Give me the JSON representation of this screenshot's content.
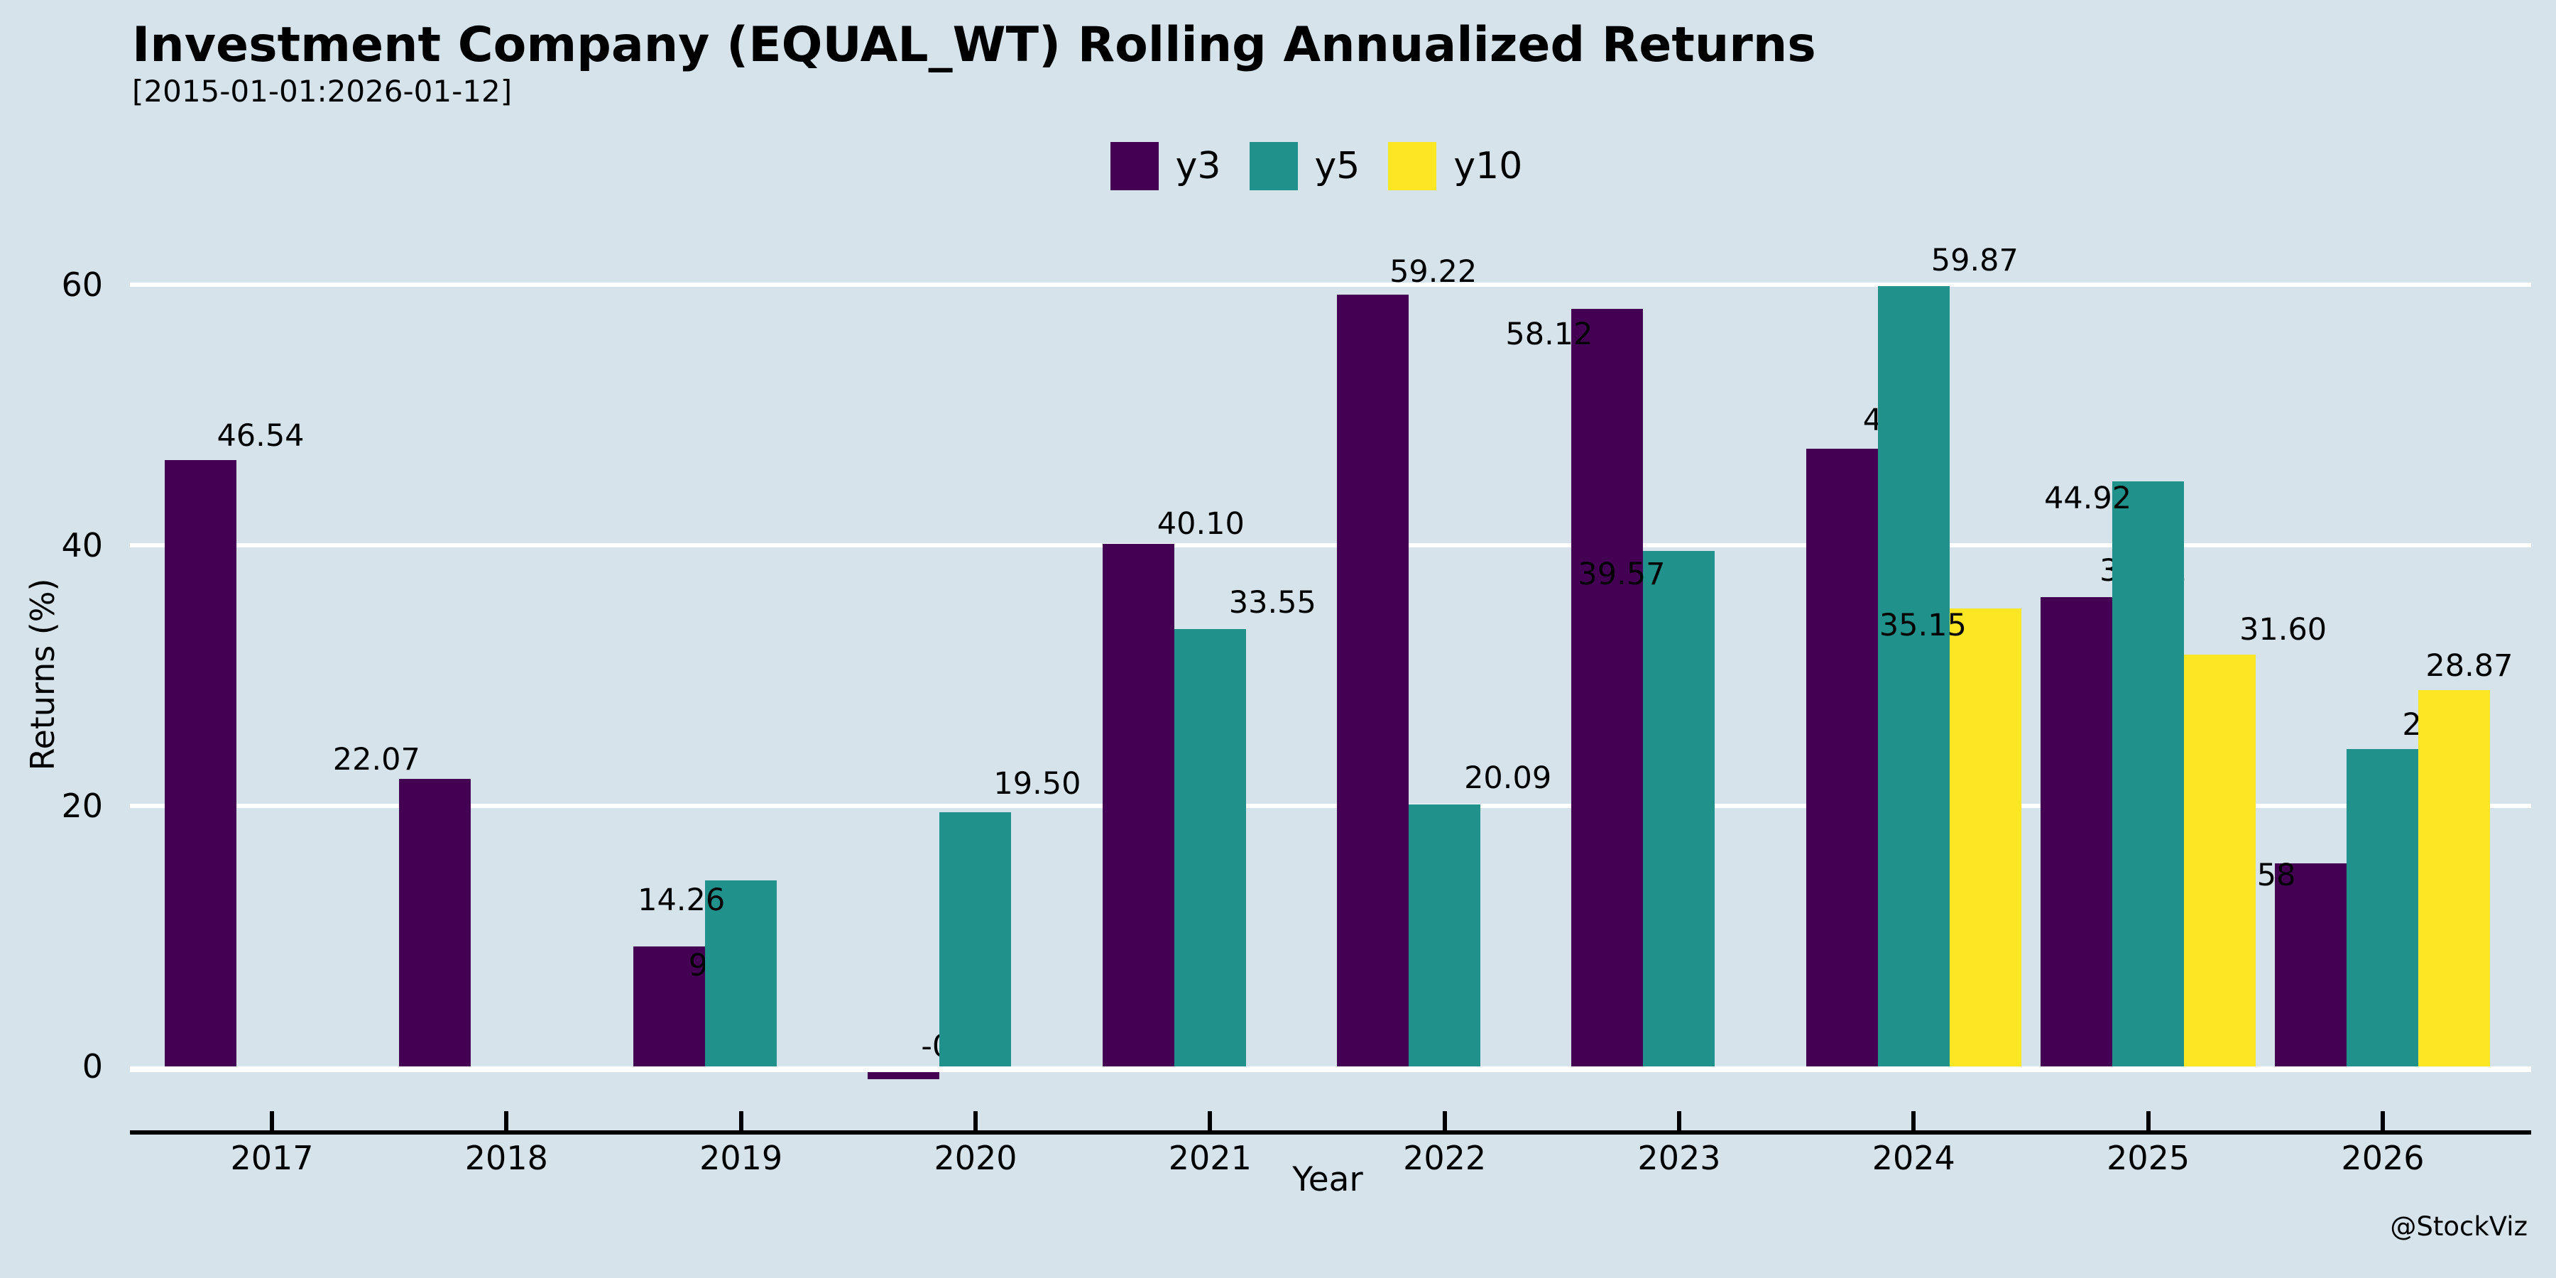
{
  "header": {
    "title": "Investment Company (EQUAL_WT) Rolling Annualized Returns",
    "subtitle": "[2015-01-01:2026-01-12]"
  },
  "watermark": "@StockViz",
  "colors": {
    "background": "#d6e3ea",
    "gridline": "#ffffff",
    "axis_line": "#000000",
    "text": "#000000",
    "series": {
      "y3": "#440154",
      "y5": "#21918c",
      "y10": "#fde725"
    }
  },
  "chart_data": {
    "type": "bar",
    "title": "Investment Company (EQUAL_WT) Rolling Annualized Returns",
    "subtitle": "[2015-01-01:2026-01-12]",
    "xlabel": "Year",
    "ylabel": "Returns (%)",
    "legend_position": "top-center",
    "grid": "horizontal white major gridlines",
    "categories": [
      "2017",
      "2018",
      "2019",
      "2020",
      "2021",
      "2022",
      "2023",
      "2024",
      "2025",
      "2026"
    ],
    "y_ticks": [
      0,
      20,
      40,
      60
    ],
    "ylim": [
      -3,
      63
    ],
    "series": [
      {
        "name": "y3",
        "color": "#440154",
        "values": [
          46.54,
          22.07,
          9.22,
          -0.57,
          40.1,
          59.22,
          58.12,
          47.4,
          36.01,
          15.58
        ],
        "labels": [
          "46.54",
          "22.07",
          "9.22",
          "-0.57",
          "40.10",
          "59.22",
          "58.12",
          "47.40",
          "36.01",
          "15.58"
        ],
        "label_nudges": [
          [
            85,
            -12
          ],
          [
            -82,
            -5
          ],
          [
            75,
            49
          ],
          [
            80,
            -6
          ],
          [
            88,
            -6
          ],
          [
            85,
            -10
          ],
          [
            -82,
            58
          ],
          [
            91,
            -18
          ],
          [
            94,
            -15
          ],
          [
            -83,
            39
          ]
        ]
      },
      {
        "name": "y5",
        "color": "#21918c",
        "values": [
          null,
          null,
          14.26,
          19.5,
          33.55,
          20.09,
          39.57,
          59.87,
          44.92,
          24.35
        ],
        "labels": [
          null,
          null,
          "14.26",
          "19.50",
          "33.55",
          "20.09",
          "39.57",
          "59.87",
          "44.92",
          "24.35"
        ],
        "label_nudges": [
          null,
          null,
          [
            -84,
            50
          ],
          [
            87,
            -18
          ],
          [
            88,
            -15
          ],
          [
            89,
            -15
          ],
          [
            -81,
            55
          ],
          [
            86,
            -14
          ],
          [
            -85,
            46
          ],
          [
            89,
            -12
          ]
        ]
      },
      {
        "name": "y10",
        "color": "#fde725",
        "values": [
          null,
          null,
          null,
          null,
          null,
          null,
          null,
          35.15,
          31.6,
          28.87
        ],
        "labels": [
          null,
          null,
          null,
          null,
          null,
          null,
          null,
          "35.15",
          "31.60",
          "28.87"
        ],
        "label_nudges": [
          null,
          null,
          null,
          null,
          null,
          null,
          null,
          [
            -88,
            46
          ],
          [
            89,
            -13
          ],
          [
            21,
            -12
          ]
        ]
      }
    ]
  }
}
